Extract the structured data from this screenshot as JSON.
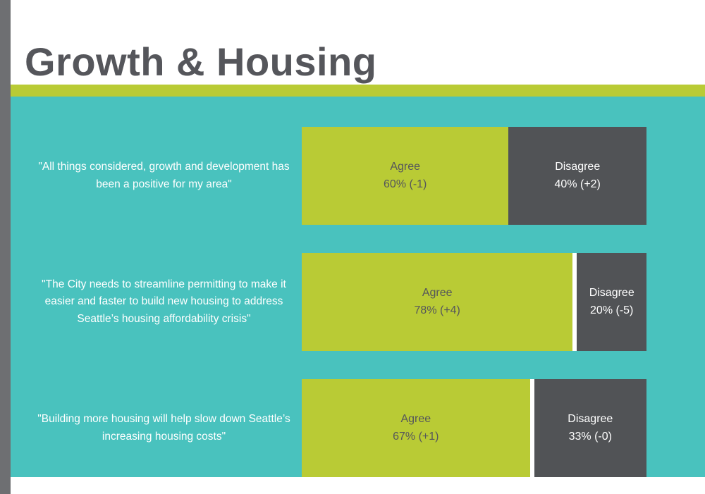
{
  "page": {
    "title": "Growth & Housing"
  },
  "colors": {
    "background_teal": "#49c2be",
    "agree_green": "#b9cb35",
    "disagree_gray": "#515356",
    "accent_stripe": "#b9cb35",
    "title_text": "#55565b",
    "left_strip_gray": "#6e6f72",
    "quote_text": "#ffffff"
  },
  "rows": [
    {
      "quote": "\"All things considered, growth and development has been a positive for my area\"",
      "agree": {
        "label": "Agree",
        "value": "60% (-1)",
        "pct": 60
      },
      "disagree": {
        "label": "Disagree",
        "value": "40% (+2)",
        "pct": 40
      }
    },
    {
      "quote": "\"The City needs to streamline permitting to make it easier and faster to build new housing to address Seattle’s housing affordability crisis\"",
      "agree": {
        "label": "Agree",
        "value": "78% (+4)",
        "pct": 78
      },
      "disagree": {
        "label": "Disagree",
        "value": "20% (-5)",
        "pct": 20
      }
    },
    {
      "quote": "\"Building more housing will help slow down Seattle’s increasing housing costs\"",
      "agree": {
        "label": "Agree",
        "value": "67% (+1)",
        "pct": 67
      },
      "disagree": {
        "label": "Disagree",
        "value": "33% (-0)",
        "pct": 33
      }
    }
  ],
  "chart_data": {
    "type": "bar",
    "subtype": "horizontal-stacked",
    "title": "Growth & Housing",
    "categories": [
      "\"All things considered, growth and development has been a positive for my area\"",
      "\"The City needs to streamline permitting to make it easier and faster to build new housing to address Seattle’s housing affordability crisis\"",
      "\"Building more housing will help slow down Seattle’s increasing housing costs\""
    ],
    "series": [
      {
        "name": "Agree",
        "values": [
          60,
          78,
          67
        ],
        "change_vs_prior": [
          "-1",
          "+4",
          "+1"
        ],
        "color": "#b9cb35"
      },
      {
        "name": "Disagree",
        "values": [
          40,
          20,
          33
        ],
        "change_vs_prior": [
          "+2",
          "-5",
          "-0"
        ],
        "color": "#515356"
      }
    ],
    "unit": "%",
    "xlim": [
      0,
      100
    ],
    "legend_position": "none",
    "grid": false,
    "data_labels": "inside-segment"
  }
}
